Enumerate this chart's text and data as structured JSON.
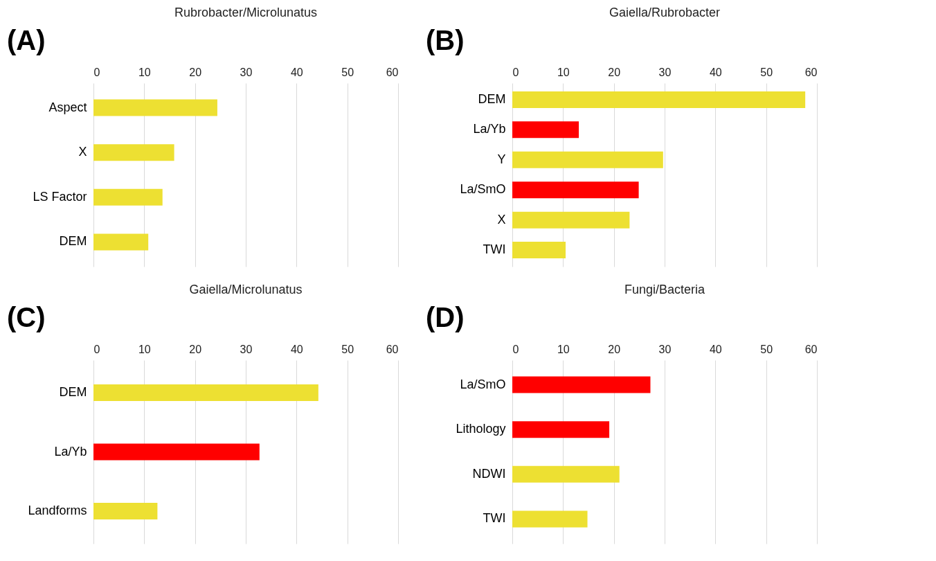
{
  "chart_data": [
    {
      "type": "bar",
      "orientation": "horizontal",
      "title": "Rubrobacter/Microlunatus",
      "annotations": [
        "(A)"
      ],
      "categories": [
        "Aspect",
        "X",
        "LS Factor",
        "DEM"
      ],
      "values": [
        24.4,
        15.9,
        13.6,
        10.8
      ],
      "colors": [
        "#ede032",
        "#ede032",
        "#ede032",
        "#ede032"
      ],
      "xlim": [
        0,
        60
      ],
      "xticks": [
        0,
        10,
        20,
        30,
        40,
        50,
        60
      ],
      "grid": "x"
    },
    {
      "type": "bar",
      "orientation": "horizontal",
      "title": "Gaiella/Rubrobacter",
      "annotations": [
        "(B)"
      ],
      "categories": [
        "DEM",
        "La/Yb",
        "Y",
        "La/SmO",
        "X",
        "TWI"
      ],
      "values": [
        57.7,
        13.1,
        29.7,
        24.9,
        23.1,
        10.5
      ],
      "colors": [
        "#ede032",
        "#ff0000",
        "#ede032",
        "#ff0000",
        "#ede032",
        "#ede032"
      ],
      "xlim": [
        0,
        60
      ],
      "xticks": [
        0,
        10,
        20,
        30,
        40,
        50,
        60
      ],
      "grid": "x"
    },
    {
      "type": "bar",
      "orientation": "horizontal",
      "title": "Gaiella/Microlunatus",
      "annotations": [
        "(C)"
      ],
      "categories": [
        "DEM",
        "La/Yb",
        "Landforms"
      ],
      "values": [
        44.3,
        32.7,
        12.6
      ],
      "colors": [
        "#ede032",
        "#ff0000",
        "#ede032"
      ],
      "xlim": [
        0,
        60
      ],
      "xticks": [
        0,
        10,
        20,
        30,
        40,
        50,
        60
      ],
      "grid": "x"
    },
    {
      "type": "bar",
      "orientation": "horizontal",
      "title": "Fungi/Bacteria",
      "annotations": [
        "(D)"
      ],
      "categories": [
        "La/SmO",
        "Lithology",
        "NDWI",
        "TWI"
      ],
      "values": [
        27.2,
        19.1,
        21.1,
        14.8
      ],
      "colors": [
        "#ff0000",
        "#ff0000",
        "#ede032",
        "#ede032"
      ],
      "xlim": [
        0,
        60
      ],
      "xticks": [
        0,
        10,
        20,
        30,
        40,
        50,
        60
      ],
      "grid": "x"
    }
  ]
}
